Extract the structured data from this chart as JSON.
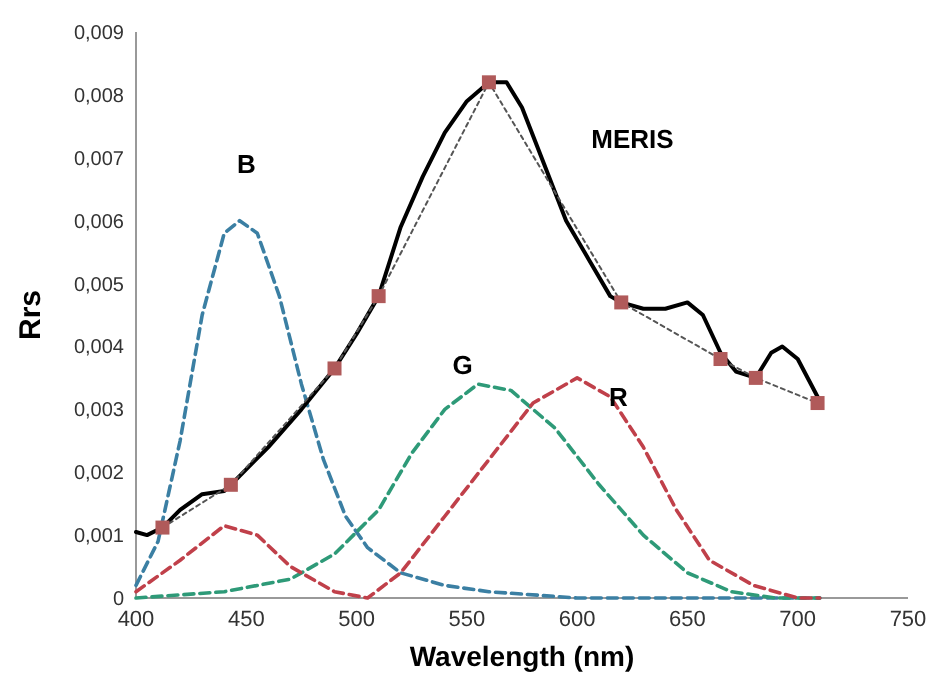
{
  "chart_data": {
    "type": "line",
    "xlabel": "Wavelength (nm)",
    "ylabel": "Rrs",
    "xlim": [
      400,
      750
    ],
    "xticks": [
      400,
      450,
      500,
      550,
      600,
      650,
      700,
      750
    ],
    "ylim": [
      0,
      0.009
    ],
    "yticks": [
      {
        "value": 0,
        "label": "0"
      },
      {
        "value": 0.001,
        "label": "0,001"
      },
      {
        "value": 0.002,
        "label": "0,002"
      },
      {
        "value": 0.003,
        "label": "0,003"
      },
      {
        "value": 0.004,
        "label": "0,004"
      },
      {
        "value": 0.005,
        "label": "0,005"
      },
      {
        "value": 0.006,
        "label": "0,006"
      },
      {
        "value": 0.007,
        "label": "0,007"
      },
      {
        "value": 0.008,
        "label": "0,008"
      },
      {
        "value": 0.009,
        "label": "0,009"
      }
    ],
    "grid": false,
    "series": [
      {
        "color": "#3b7fa3",
        "line_style": "dashed",
        "marker": "none",
        "x": [
          400,
          410,
          420,
          430,
          440,
          447,
          455,
          465,
          475,
          485,
          495,
          505,
          520,
          540,
          560,
          600,
          650,
          710
        ],
        "values": [
          0.0002,
          0.0009,
          0.0025,
          0.0045,
          0.0058,
          0.006,
          0.0058,
          0.0048,
          0.0034,
          0.0022,
          0.0013,
          0.0008,
          0.0004,
          0.0002,
          0.0001,
          0,
          0,
          0
        ]
      },
      {
        "color": "#2e9a78",
        "line_style": "dashed",
        "marker": "none",
        "x": [
          400,
          440,
          470,
          490,
          510,
          525,
          540,
          555,
          570,
          590,
          610,
          630,
          650,
          670,
          690,
          710
        ],
        "values": [
          0,
          0.0001,
          0.0003,
          0.0007,
          0.0014,
          0.0023,
          0.003,
          0.0034,
          0.0033,
          0.0027,
          0.0018,
          0.001,
          0.0004,
          0.0001,
          0,
          0
        ]
      },
      {
        "color": "#c0404a",
        "line_style": "dashed",
        "marker": "none",
        "x": [
          400,
          420,
          440,
          455,
          470,
          490,
          505,
          520,
          540,
          560,
          580,
          600,
          615,
          630,
          645,
          660,
          680,
          700,
          710
        ],
        "values": [
          0.0001,
          0.0006,
          0.00115,
          0.001,
          0.0005,
          0.0001,
          0,
          0.0004,
          0.0013,
          0.0022,
          0.0031,
          0.0035,
          0.0032,
          0.0024,
          0.0014,
          0.0006,
          0.0002,
          0,
          0
        ]
      },
      {
        "color": "#000000",
        "line_style": "solid",
        "marker": "none",
        "x": [
          400,
          405,
          412,
          420,
          430,
          440,
          443,
          460,
          475,
          490,
          500,
          510,
          520,
          530,
          540,
          550,
          560,
          568,
          575,
          585,
          595,
          605,
          615,
          620,
          630,
          640,
          650,
          657,
          665,
          672,
          681,
          688,
          693,
          700,
          709
        ],
        "values": [
          0.00105,
          0.001,
          0.00112,
          0.0014,
          0.00165,
          0.0017,
          0.0018,
          0.0024,
          0.003,
          0.00365,
          0.0042,
          0.0048,
          0.0059,
          0.0067,
          0.0074,
          0.0079,
          0.0082,
          0.0082,
          0.0078,
          0.0069,
          0.006,
          0.0054,
          0.0048,
          0.0047,
          0.0046,
          0.0046,
          0.0047,
          0.0045,
          0.0039,
          0.0036,
          0.0035,
          0.0039,
          0.004,
          0.0038,
          0.0032
        ]
      },
      {
        "color": "#555555",
        "line_style": "dotted",
        "marker": "none",
        "x": [
          412,
          443,
          490,
          510,
          560,
          620,
          665,
          681,
          709
        ],
        "values": [
          0.00112,
          0.0018,
          0.00365,
          0.0048,
          0.0082,
          0.0047,
          0.0038,
          0.0035,
          0.0031
        ]
      },
      {
        "type": "scatter",
        "color": "#b05a5a",
        "marker": "square",
        "x": [
          412,
          443,
          490,
          510,
          560,
          620,
          665,
          681,
          709
        ],
        "values": [
          0.00112,
          0.0018,
          0.00365,
          0.0048,
          0.0082,
          0.0047,
          0.0038,
          0.0035,
          0.0031
        ]
      }
    ],
    "annotations": [
      "B",
      "G",
      "R",
      "MERIS"
    ]
  }
}
